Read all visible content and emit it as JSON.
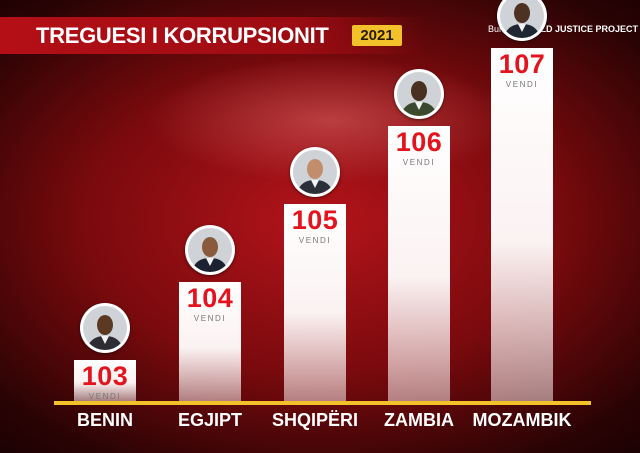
{
  "header": {
    "title": "TREGUESI I KORRUPSIONIT",
    "year": "2021",
    "source_prefix": "Burimi:",
    "source_name": "WORLD JUSTICE PROJECT"
  },
  "colors": {
    "background": "#a3121a",
    "bar": "#ffffff",
    "rank_text": "#e3141d",
    "accent": "#f3c22b"
  },
  "chart_data": {
    "type": "bar",
    "title": "TREGUESI I KORRUPSIONIT",
    "categories": [
      "BENIN",
      "EGJIPT",
      "SHQIPËRI",
      "ZAMBIA",
      "MOZAMBIK"
    ],
    "series": [
      {
        "values": [
          103,
          104,
          105,
          106,
          107
        ]
      }
    ],
    "value_labels": [
      "103",
      "104",
      "105",
      "106",
      "107"
    ],
    "unit_label": "VENDI",
    "xlabel": "",
    "ylabel": "",
    "grid": false,
    "legend": "none"
  }
}
